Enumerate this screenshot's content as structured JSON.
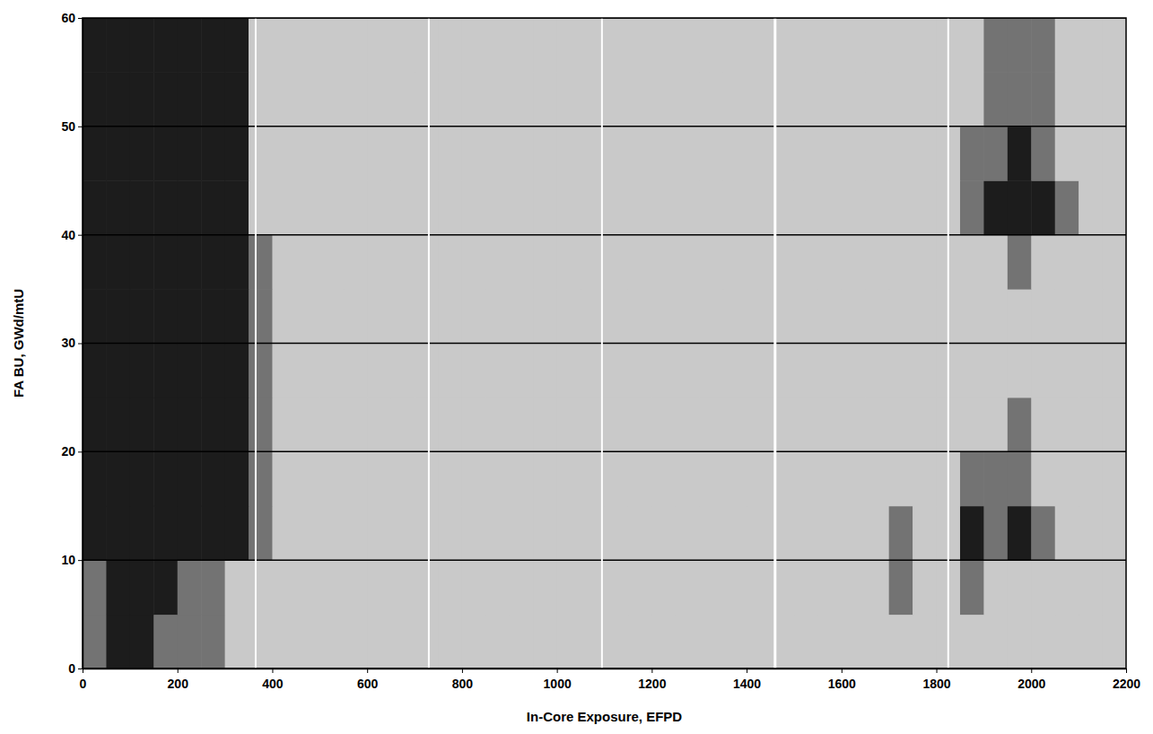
{
  "chart_data": {
    "type": "heatmap",
    "x_label": "In-Core Exposure, EFPD",
    "y_label": "FA BU, GWd/mtU",
    "xlim": [
      0,
      2200
    ],
    "ylim": [
      0,
      60
    ],
    "xticks": [
      0,
      200,
      400,
      600,
      800,
      1000,
      1200,
      1400,
      1600,
      1800,
      2000,
      2200
    ],
    "yticks": [
      0,
      10,
      20,
      30,
      40,
      50,
      60
    ],
    "grid": true,
    "vlines": [
      365,
      730,
      1095,
      1460,
      1825
    ],
    "x_bins": [
      0,
      50,
      100,
      150,
      200,
      250,
      300,
      350,
      400,
      450,
      500,
      550,
      600,
      650,
      700,
      750,
      800,
      850,
      900,
      950,
      1000,
      1050,
      1100,
      1150,
      1200,
      1250,
      1300,
      1350,
      1400,
      1450,
      1500,
      1550,
      1600,
      1650,
      1700,
      1750,
      1800,
      1850,
      1900,
      1950,
      2000,
      2050,
      2100,
      2150,
      2200
    ],
    "y_bins": [
      0,
      5,
      10,
      15,
      20,
      25,
      30,
      35,
      40,
      45,
      50,
      55,
      60
    ],
    "cells": [
      [
        0.5,
        1,
        1,
        0.5,
        0.5,
        0.5,
        0,
        0,
        0,
        0,
        0,
        0,
        0,
        0,
        0,
        0,
        0,
        0,
        0,
        0,
        0,
        0,
        0,
        0,
        0,
        0,
        0,
        0,
        0,
        0,
        0,
        0,
        0,
        0,
        0,
        0,
        0,
        0,
        0,
        0,
        0,
        0,
        0,
        0
      ],
      [
        0.5,
        1,
        1,
        1,
        0.5,
        0.5,
        0,
        0,
        0,
        0,
        0,
        0,
        0,
        0,
        0,
        0,
        0,
        0,
        0,
        0,
        0,
        0,
        0,
        0,
        0,
        0,
        0,
        0,
        0,
        0,
        0,
        0,
        0,
        0,
        0.5,
        0,
        0,
        0.5,
        0,
        0,
        0,
        0,
        0,
        0
      ],
      [
        1,
        1,
        1,
        1,
        1,
        1,
        1,
        0.5,
        0,
        0,
        0,
        0,
        0,
        0,
        0,
        0,
        0,
        0,
        0,
        0,
        0,
        0,
        0,
        0,
        0,
        0,
        0,
        0,
        0,
        0,
        0,
        0,
        0,
        0,
        0.5,
        0,
        0,
        1,
        0.5,
        1,
        0.5,
        0,
        0,
        0
      ],
      [
        1,
        1,
        1,
        1,
        1,
        1,
        1,
        0.5,
        0,
        0,
        0,
        0,
        0,
        0,
        0,
        0,
        0,
        0,
        0,
        0,
        0,
        0,
        0,
        0,
        0,
        0,
        0,
        0,
        0,
        0,
        0,
        0,
        0,
        0,
        0,
        0,
        0,
        0.5,
        0.5,
        0.5,
        0,
        0,
        0,
        0
      ],
      [
        1,
        1,
        1,
        1,
        1,
        1,
        1,
        0.5,
        0,
        0,
        0,
        0,
        0,
        0,
        0,
        0,
        0,
        0,
        0,
        0,
        0,
        0,
        0,
        0,
        0,
        0,
        0,
        0,
        0,
        0,
        0,
        0,
        0,
        0,
        0,
        0,
        0,
        0,
        0,
        0.5,
        0,
        0,
        0,
        0
      ],
      [
        1,
        1,
        1,
        1,
        1,
        1,
        1,
        0.5,
        0,
        0,
        0,
        0,
        0,
        0,
        0,
        0,
        0,
        0,
        0,
        0,
        0,
        0,
        0,
        0,
        0,
        0,
        0,
        0,
        0,
        0,
        0,
        0,
        0,
        0,
        0,
        0,
        0,
        0,
        0,
        0,
        0,
        0,
        0,
        0
      ],
      [
        1,
        1,
        1,
        1,
        1,
        1,
        1,
        0.5,
        0,
        0,
        0,
        0,
        0,
        0,
        0,
        0,
        0,
        0,
        0,
        0,
        0,
        0,
        0,
        0,
        0,
        0,
        0,
        0,
        0,
        0,
        0,
        0,
        0,
        0,
        0,
        0,
        0,
        0,
        0,
        0,
        0,
        0,
        0,
        0
      ],
      [
        1,
        1,
        1,
        1,
        1,
        1,
        1,
        0.5,
        0,
        0,
        0,
        0,
        0,
        0,
        0,
        0,
        0,
        0,
        0,
        0,
        0,
        0,
        0,
        0,
        0,
        0,
        0,
        0,
        0,
        0,
        0,
        0,
        0,
        0,
        0,
        0,
        0,
        0,
        0,
        0.5,
        0,
        0,
        0,
        0
      ],
      [
        1,
        1,
        1,
        1,
        1,
        1,
        1,
        0,
        0,
        0,
        0,
        0,
        0,
        0,
        0,
        0,
        0,
        0,
        0,
        0,
        0,
        0,
        0,
        0,
        0,
        0,
        0,
        0,
        0,
        0,
        0,
        0,
        0,
        0,
        0,
        0,
        0,
        0.5,
        1,
        1,
        1,
        0.5,
        0,
        0
      ],
      [
        1,
        1,
        1,
        1,
        1,
        1,
        1,
        0,
        0,
        0,
        0,
        0,
        0,
        0,
        0,
        0,
        0,
        0,
        0,
        0,
        0,
        0,
        0,
        0,
        0,
        0,
        0,
        0,
        0,
        0,
        0,
        0,
        0,
        0,
        0,
        0,
        0,
        0.5,
        0.5,
        1,
        0.5,
        0,
        0,
        0
      ],
      [
        1,
        1,
        1,
        1,
        1,
        1,
        1,
        0,
        0,
        0,
        0,
        0,
        0,
        0,
        0,
        0,
        0,
        0,
        0,
        0,
        0,
        0,
        0,
        0,
        0,
        0,
        0,
        0,
        0,
        0,
        0,
        0,
        0,
        0,
        0,
        0,
        0,
        0,
        0.5,
        0.5,
        0.5,
        0,
        0,
        0
      ],
      [
        1,
        1,
        1,
        1,
        1,
        1,
        1,
        0,
        0,
        0,
        0,
        0,
        0,
        0,
        0,
        0,
        0,
        0,
        0,
        0,
        0,
        0,
        0,
        0,
        0,
        0,
        0,
        0,
        0,
        0,
        0,
        0,
        0,
        0,
        0,
        0,
        0,
        0,
        0.5,
        0.5,
        0.5,
        0,
        0,
        0
      ]
    ]
  }
}
